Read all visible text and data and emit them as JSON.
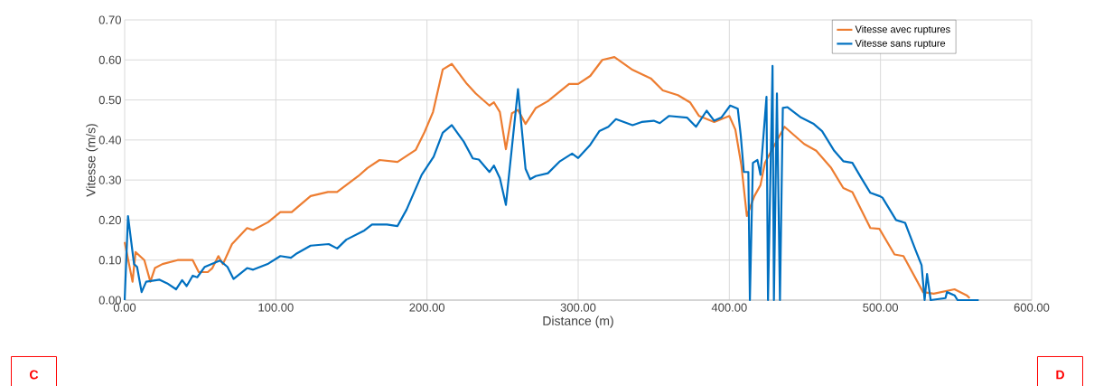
{
  "chart_data": {
    "type": "line",
    "xlabel": "Distance (m)",
    "ylabel": "Vitesse (m/s)",
    "xlim": [
      0,
      600
    ],
    "ylim": [
      0,
      0.7
    ],
    "xticks": [
      {
        "value": 0,
        "label": "0.00"
      },
      {
        "value": 100,
        "label": "100.00"
      },
      {
        "value": 200,
        "label": "200.00"
      },
      {
        "value": 300,
        "label": "300.00"
      },
      {
        "value": 400,
        "label": "400.00"
      },
      {
        "value": 500,
        "label": "500.00"
      },
      {
        "value": 600,
        "label": "600.00"
      }
    ],
    "yticks": [
      {
        "value": 0,
        "label": "0.00"
      },
      {
        "value": 0.1,
        "label": "0.10"
      },
      {
        "value": 0.2,
        "label": "0.20"
      },
      {
        "value": 0.3,
        "label": "0.30"
      },
      {
        "value": 0.4,
        "label": "0.40"
      },
      {
        "value": 0.5,
        "label": "0.50"
      },
      {
        "value": 0.6,
        "label": "0.60"
      },
      {
        "value": 0.7,
        "label": "0.70"
      }
    ],
    "grid": true,
    "legend": "top right",
    "line_style": "solid",
    "annotations": [
      "C",
      "D"
    ],
    "series": [
      {
        "name": "Vitesse avec ruptures",
        "color": "#ed7d31",
        "x": [
          0,
          5.2,
          7.2,
          13,
          17,
          20,
          25,
          35,
          45,
          49,
          55,
          58,
          62,
          65,
          71,
          81,
          85,
          95,
          103,
          110.5,
          123,
          134.5,
          140.5,
          154.6,
          160.6,
          168.6,
          180.5,
          192.5,
          198.4,
          204,
          210.4,
          216.4,
          226.4,
          232.3,
          241.3,
          244.3,
          248.2,
          252.2,
          256.2,
          260.2,
          265.2,
          272,
          280,
          294,
          300,
          308,
          316,
          324,
          336,
          348,
          356,
          366,
          374,
          380,
          390,
          400,
          404,
          408,
          411.6,
          416.6,
          420.6,
          423.6,
          436.5,
          449.5,
          457.5,
          467.4,
          475.4,
          481.4,
          493.3,
          499.3,
          509.3,
          515.2,
          528.2,
          535.2,
          549,
          557,
          559
        ],
        "values": [
          0.145,
          0.046,
          0.12,
          0.1,
          0.046,
          0.08,
          0.09,
          0.1,
          0.1,
          0.07,
          0.07,
          0.08,
          0.11,
          0.09,
          0.14,
          0.18,
          0.175,
          0.195,
          0.22,
          0.22,
          0.26,
          0.27,
          0.27,
          0.31,
          0.33,
          0.35,
          0.345,
          0.375,
          0.42,
          0.47,
          0.576,
          0.59,
          0.54,
          0.516,
          0.486,
          0.494,
          0.47,
          0.377,
          0.467,
          0.475,
          0.44,
          0.48,
          0.497,
          0.54,
          0.54,
          0.56,
          0.6,
          0.607,
          0.575,
          0.554,
          0.524,
          0.512,
          0.494,
          0.46,
          0.445,
          0.46,
          0.426,
          0.336,
          0.21,
          0.26,
          0.287,
          0.343,
          0.433,
          0.39,
          0.373,
          0.33,
          0.28,
          0.27,
          0.18,
          0.178,
          0.114,
          0.11,
          0.02,
          0.016,
          0.027,
          0.012,
          0.005
        ]
      },
      {
        "name": "Vitesse sans rupture",
        "color": "#0070c0",
        "x": [
          0,
          2.2,
          6.2,
          8.2,
          11.2,
          14.2,
          23.1,
          28.1,
          34,
          38,
          41,
          45,
          48,
          53,
          63,
          68,
          72,
          81,
          85,
          95,
          103,
          110,
          114,
          123,
          135,
          140.6,
          146.6,
          158.6,
          163.6,
          173.5,
          180.5,
          186.5,
          196.5,
          204.4,
          210.4,
          216.4,
          224.3,
          230.3,
          234.3,
          241.3,
          244.3,
          248.2,
          252.2,
          260.2,
          265.2,
          268.2,
          272,
          280,
          288,
          296,
          300,
          308,
          314,
          320,
          325,
          336,
          342,
          350,
          354,
          360,
          372,
          378,
          385,
          390,
          394.7,
          400.6,
          405.6,
          407.6,
          409.6,
          412.6,
          413.6,
          415.6,
          418.6,
          420.6,
          424.6,
          425.6,
          428.6,
          429.5,
          431.5,
          433.5,
          435.4,
          438.5,
          447.5,
          455.5,
          461.4,
          469.4,
          475.4,
          481.4,
          487.3,
          493.3,
          499.3,
          501.3,
          510.3,
          516.3,
          523.2,
          527.2,
          529.2,
          530.8,
          533.2,
          543,
          544,
          549,
          551,
          565
        ],
        "values": [
          0,
          0.21,
          0.09,
          0.083,
          0.02,
          0.046,
          0.051,
          0.042,
          0.027,
          0.05,
          0.035,
          0.061,
          0.057,
          0.083,
          0.099,
          0.083,
          0.053,
          0.08,
          0.076,
          0.091,
          0.11,
          0.106,
          0.117,
          0.136,
          0.14,
          0.129,
          0.151,
          0.174,
          0.189,
          0.189,
          0.185,
          0.226,
          0.313,
          0.358,
          0.418,
          0.437,
          0.396,
          0.354,
          0.351,
          0.32,
          0.336,
          0.305,
          0.238,
          0.527,
          0.328,
          0.302,
          0.31,
          0.317,
          0.347,
          0.366,
          0.355,
          0.388,
          0.422,
          0.433,
          0.452,
          0.437,
          0.445,
          0.448,
          0.442,
          0.46,
          0.456,
          0.433,
          0.473,
          0.448,
          0.456,
          0.486,
          0.478,
          0.41,
          0.32,
          0.32,
          0,
          0.343,
          0.35,
          0.313,
          0.508,
          0,
          0.585,
          0,
          0.516,
          0,
          0.48,
          0.482,
          0.456,
          0.441,
          0.422,
          0.373,
          0.347,
          0.343,
          0.305,
          0.268,
          0.26,
          0.256,
          0.2,
          0.193,
          0.125,
          0.087,
          0,
          0.065,
          0,
          0.005,
          0.02,
          0.012,
          0,
          0
        ]
      }
    ]
  }
}
